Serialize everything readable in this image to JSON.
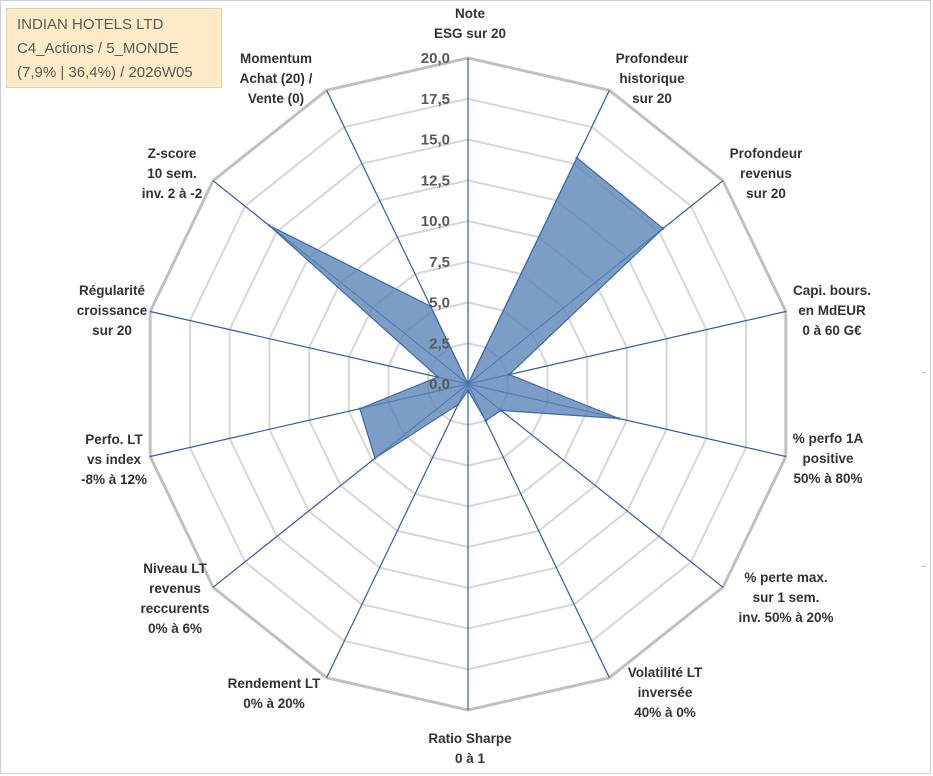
{
  "info": {
    "name": "INDIAN HOTELS LTD",
    "category": "C4_Actions / 5_MONDE",
    "stats": "(7,9% | 36,4%) / 2026W05"
  },
  "colors": {
    "fill": "#5b85b8",
    "stroke": "#3e6aa6",
    "spoke": "#2f5ea8",
    "outer_ring": "#c0c0c0",
    "inner_ring": "#d6d6d6",
    "background": "#ffffff",
    "info_bg": "#fdebc8"
  },
  "chart_data": {
    "type": "radar",
    "rmin": 0,
    "rmax": 20,
    "tick_labels": [
      "0,0",
      "2,5",
      "5,0",
      "7,5",
      "10,0",
      "12,5",
      "15,0",
      "17,5",
      "20,0"
    ],
    "axes": [
      {
        "label": [
          "Note",
          "ESG sur 20"
        ],
        "value": 0
      },
      {
        "label": [
          "Profondeur",
          "historique",
          "sur 20"
        ],
        "value": 15.4
      },
      {
        "label": [
          "Profondeur",
          "revenus",
          "sur 20"
        ],
        "value": 15.3
      },
      {
        "label": [
          "Capi. bours.",
          "en MdEUR",
          "0 à 60 G€"
        ],
        "value": 2.6
      },
      {
        "label": [
          "% perfo 1A",
          "positive",
          "50% à 80%"
        ],
        "value": 9.5
      },
      {
        "label": [
          "% perte max.",
          "sur 1 sem.",
          "inv. 50% à 20%"
        ],
        "value": 2.6
      },
      {
        "label": [
          "Volatilité LT",
          "inversée",
          "40% à 0%"
        ],
        "value": 2.5
      },
      {
        "label": [
          "Ratio Sharpe",
          "0 à 1"
        ],
        "value": 0.4
      },
      {
        "label": [
          "Rendement LT",
          "0% à 20%"
        ],
        "value": 1.4
      },
      {
        "label": [
          "Niveau LT",
          "revenus",
          "reccurents",
          "0% à 6%"
        ],
        "value": 7.3
      },
      {
        "label": [
          "Perfo. LT",
          "vs index",
          "-8% à 12%"
        ],
        "value": 6.8
      },
      {
        "label": [
          "Régularité",
          "croissance",
          "sur 20"
        ],
        "value": 1.9
      },
      {
        "label": [
          "Z-score",
          "10 sem.",
          "inv. 2 à -2"
        ],
        "value": 15.6
      },
      {
        "label": [
          "Momentum",
          "Achat (20) /",
          "Vente (0)"
        ],
        "value": 5.3
      }
    ]
  }
}
